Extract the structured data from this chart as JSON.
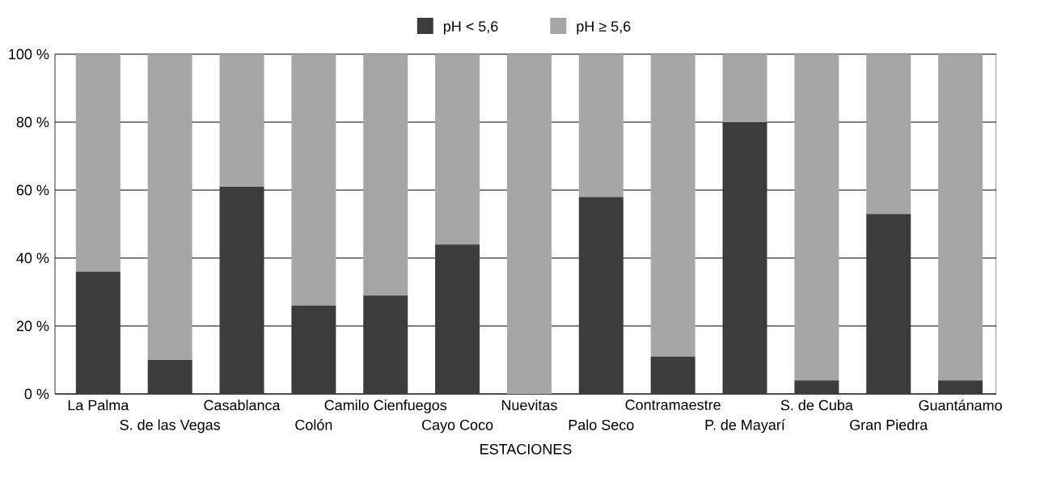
{
  "chart_data": {
    "type": "bar",
    "stacked": true,
    "xlabel": "ESTACIONES",
    "categories": [
      "La Palma",
      "S. de las Vegas",
      "Casablanca",
      "Colón",
      "Camilo Cienfuegos",
      "Cayo Coco",
      "Nuevitas",
      "Palo Seco",
      "Contramaestre",
      "P. de Mayarí",
      "S. de Cuba",
      "Gran Piedra",
      "Guantánamo"
    ],
    "series": [
      {
        "name": "pH < 5,6",
        "color": "#3c3c3c",
        "values": [
          36,
          10,
          61,
          26,
          29,
          44,
          0,
          58,
          11,
          80,
          4,
          53,
          4
        ]
      },
      {
        "name": "pH ≥ 5,6",
        "color": "#a6a6a6",
        "values": [
          64,
          90,
          39,
          74,
          71,
          56,
          100,
          42,
          89,
          20,
          96,
          47,
          96
        ]
      }
    ],
    "ylim": [
      0,
      100
    ],
    "yticks": [
      {
        "value": 0,
        "label": "0 %"
      },
      {
        "value": 20,
        "label": "20 %"
      },
      {
        "value": 40,
        "label": "40 %"
      },
      {
        "value": 60,
        "label": "60 %"
      },
      {
        "value": 80,
        "label": "80 %"
      },
      {
        "value": 100,
        "label": "100 %"
      }
    ],
    "grid": "y",
    "legend": "top"
  }
}
